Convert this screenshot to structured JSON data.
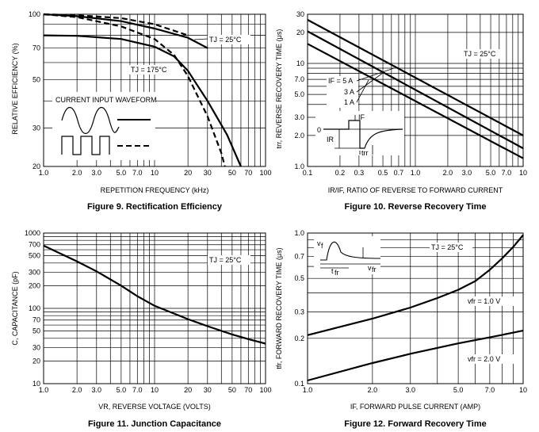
{
  "chart_data": [
    {
      "id": "fig9",
      "type": "line",
      "title": "Figure 9. Rectification Efficiency",
      "xlabel": "REPETITION FREQUENCY (kHz)",
      "ylabel": "RELATIVE EFFICIENCY (%)",
      "scale": "log-log",
      "xlim": [
        1,
        100
      ],
      "ylim": [
        20,
        100
      ],
      "xticks": [
        "1.0",
        "2.0",
        "3.0",
        "5.0",
        "7.0",
        "10",
        "20",
        "30",
        "50",
        "70",
        "100"
      ],
      "xtick_values": [
        1,
        2,
        3,
        5,
        7,
        10,
        20,
        30,
        50,
        70,
        100
      ],
      "yticks": [
        "20",
        "30",
        "50",
        "70",
        "100"
      ],
      "ytick_values": [
        20,
        30,
        50,
        70,
        100
      ],
      "annotations": [
        {
          "text": "TJ = 25°C",
          "x": 33,
          "y": 80
        },
        {
          "text": "TJ = 175°C",
          "x": 6.2,
          "y": 58
        },
        {
          "text": "CURRENT INPUT WAVEFORM",
          "x": 2.9,
          "y": 41
        }
      ],
      "series": [
        {
          "label": "sine (solid)",
          "style": "solid",
          "x": [
            1,
            2,
            5,
            10,
            15,
            20,
            30,
            45,
            60
          ],
          "y": [
            80,
            79.6,
            77,
            71,
            64,
            55,
            40,
            28,
            20
          ]
        },
        {
          "label": "square (dashed)",
          "style": "dashed",
          "x": [
            1,
            2,
            5,
            10,
            15,
            20,
            30,
            40,
            43
          ],
          "y": [
            100,
            97,
            88,
            77,
            65,
            52,
            34,
            23,
            20
          ]
        },
        {
          "label": "25°C solid",
          "style": "solid",
          "x": [
            1,
            2,
            5,
            10,
            20,
            30
          ],
          "y": [
            100,
            98,
            93,
            86,
            78,
            70
          ]
        },
        {
          "label": "25°C dashed",
          "style": "dashed",
          "x": [
            1,
            2,
            5,
            10,
            20
          ],
          "y": [
            100,
            99,
            96,
            90,
            80
          ]
        }
      ]
    },
    {
      "id": "fig10",
      "type": "line",
      "title": "Figure 10. Reverse Recovery Time",
      "xlabel": "IR/IF, RATIO OF REVERSE TO FORWARD CURRENT",
      "ylabel": "trr, REVERSE RECOVERY TIME (μs)",
      "scale": "log-log",
      "xlim": [
        0.1,
        10
      ],
      "ylim": [
        1,
        30
      ],
      "xticks": [
        "0.1",
        "0.2",
        "0.3",
        "0.5",
        "0.7",
        "1.0",
        "2.0",
        "3.0",
        "5.0",
        "7.0",
        "10"
      ],
      "xtick_values": [
        0.1,
        0.2,
        0.3,
        0.5,
        0.7,
        1,
        2,
        3,
        5,
        7,
        10
      ],
      "yticks": [
        "1.0",
        "2.0",
        "3.0",
        "5.0",
        "7.0",
        "10",
        "20",
        "30"
      ],
      "ytick_values": [
        1,
        2,
        3,
        5,
        7,
        10,
        20,
        30
      ],
      "annotations": [
        {
          "text": "TJ = 25°C",
          "x": 5,
          "y": 12.5
        },
        {
          "text": "IF = 5 A",
          "x": 0.33,
          "y": 7.5
        },
        {
          "text": "3 A",
          "x": 0.38,
          "y": 5.5
        },
        {
          "text": "1 A",
          "x": 0.38,
          "y": 4.5
        },
        {
          "text": "IF",
          "x": 0.34,
          "y": 3.0
        },
        {
          "text": "0",
          "x": 0.17,
          "y": 2.45
        },
        {
          "text": "IR",
          "x": 0.2,
          "y": 2.0
        },
        {
          "text": "trr",
          "x": 0.4,
          "y": 1.55
        }
      ],
      "series": [
        {
          "name": "IF = 5 A",
          "x": [
            0.1,
            10
          ],
          "y": [
            26.5,
            2.0
          ]
        },
        {
          "name": "3 A",
          "x": [
            0.1,
            10
          ],
          "y": [
            20.5,
            1.5
          ]
        },
        {
          "name": "1 A",
          "x": [
            0.1,
            10
          ],
          "y": [
            15.5,
            1.2
          ]
        }
      ]
    },
    {
      "id": "fig11",
      "type": "line",
      "title": "Figure 11. Junction Capacitance",
      "xlabel": "VR, REVERSE VOLTAGE (VOLTS)",
      "ylabel": "C, CAPACITANCE (pF)",
      "scale": "log-log",
      "xlim": [
        1,
        100
      ],
      "ylim": [
        10,
        1000
      ],
      "xticks": [
        "1.0",
        "2.0",
        "3.0",
        "5.0",
        "7.0",
        "10",
        "20",
        "30",
        "50",
        "70",
        "100"
      ],
      "xtick_values": [
        1,
        2,
        3,
        5,
        7,
        10,
        20,
        30,
        50,
        70,
        100
      ],
      "yticks": [
        "10",
        "20",
        "30",
        "50",
        "70",
        "100",
        "200",
        "300",
        "500",
        "700",
        "1000"
      ],
      "ytick_values": [
        10,
        20,
        30,
        50,
        70,
        100,
        200,
        300,
        500,
        700,
        1000
      ],
      "annotations": [
        {
          "text": "TJ = 25°C",
          "x": 30,
          "y": 340
        }
      ],
      "series": [
        {
          "name": "C",
          "x": [
            1,
            2,
            3,
            5,
            7,
            10,
            20,
            30,
            50,
            70,
            100
          ],
          "y": [
            680,
            420,
            310,
            200,
            145,
            108,
            72,
            58,
            45,
            39,
            34
          ]
        }
      ]
    },
    {
      "id": "fig12",
      "type": "line",
      "title": "Figure 12. Forward Recovery Time",
      "xlabel": "IF, FORWARD PULSE CURRENT (AMP)",
      "ylabel": "tfr, FORWARD RECOVERY TIME (μs)",
      "scale": "log-log",
      "xlim": [
        1,
        10
      ],
      "ylim": [
        0.1,
        1
      ],
      "xticks": [
        "1.0",
        "2.0",
        "3.0",
        "5.0",
        "7.0",
        "10"
      ],
      "xtick_values": [
        1,
        2,
        3,
        5,
        7,
        10
      ],
      "yticks": [
        "0.1",
        "0.2",
        "0.3",
        "0.5",
        "0.7",
        "1.0"
      ],
      "ytick_values": [
        0.1,
        0.2,
        0.3,
        0.5,
        0.7,
        1
      ],
      "annotations": [
        {
          "text": "TJ = 25°C",
          "x": 6.5,
          "y": 0.76
        },
        {
          "text": "vfr = 1.0 V",
          "x": 7.5,
          "y": 0.36
        },
        {
          "text": "vfr = 2.0 V",
          "x": 7.5,
          "y": 0.16
        }
      ],
      "series": [
        {
          "name": "vfr = 1.0 V",
          "x": [
            1,
            2,
            3,
            4,
            5,
            6,
            7,
            8,
            9,
            10
          ],
          "y": [
            0.21,
            0.27,
            0.32,
            0.37,
            0.42,
            0.48,
            0.57,
            0.68,
            0.81,
            0.97
          ]
        },
        {
          "name": "vfr = 2.0 V",
          "x": [
            1,
            2,
            3,
            5,
            7,
            10
          ],
          "y": [
            0.105,
            0.137,
            0.158,
            0.185,
            0.203,
            0.225
          ]
        }
      ]
    }
  ]
}
